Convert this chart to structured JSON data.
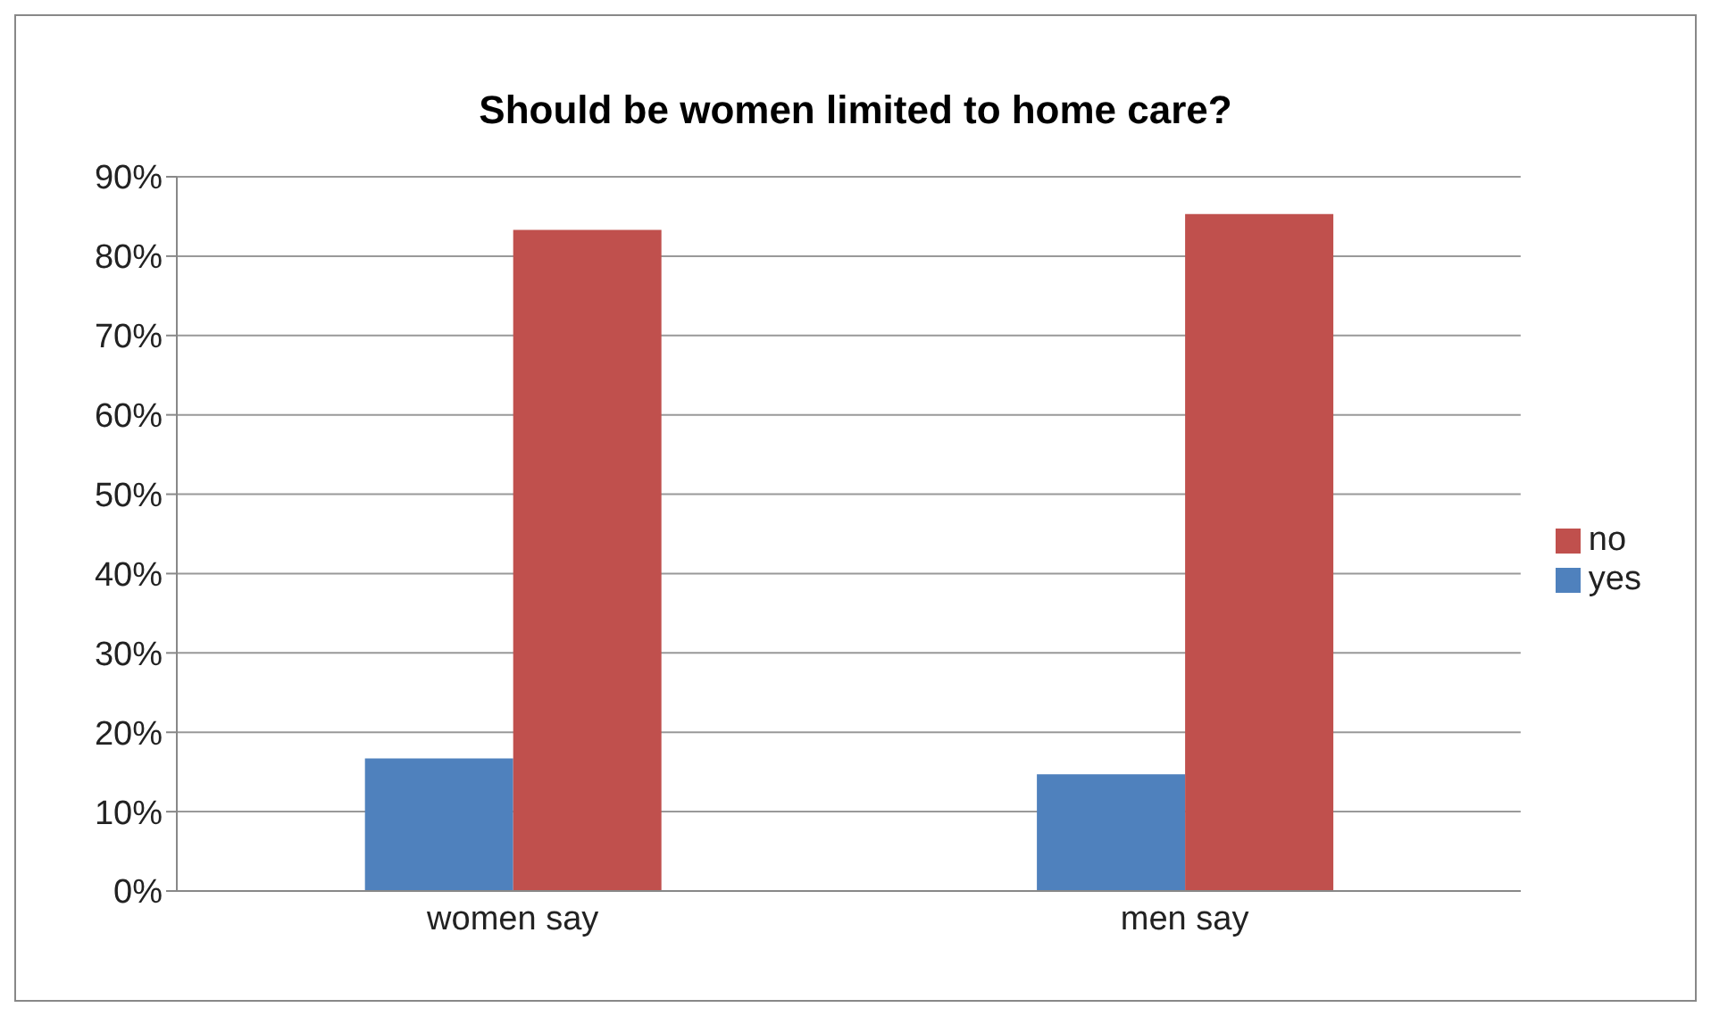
{
  "chart_data": {
    "type": "bar",
    "title": "Should be women limited to home care?",
    "categories": [
      "women say",
      "men say"
    ],
    "series": [
      {
        "name": "yes",
        "color": "#4f81bd",
        "values": [
          16.7,
          14.7
        ]
      },
      {
        "name": "no",
        "color": "#c0504d",
        "values": [
          83.3,
          85.3
        ]
      }
    ],
    "ylim": [
      0,
      90
    ],
    "yticks": [
      {
        "value": 0,
        "label": "0%"
      },
      {
        "value": 10,
        "label": "10%"
      },
      {
        "value": 20,
        "label": "20%"
      },
      {
        "value": 30,
        "label": "30%"
      },
      {
        "value": 40,
        "label": "40%"
      },
      {
        "value": 50,
        "label": "50%"
      },
      {
        "value": 60,
        "label": "60%"
      },
      {
        "value": 70,
        "label": "70%"
      },
      {
        "value": 80,
        "label": "80%"
      },
      {
        "value": 90,
        "label": "90%"
      }
    ],
    "grid": "y",
    "legend": "right"
  }
}
